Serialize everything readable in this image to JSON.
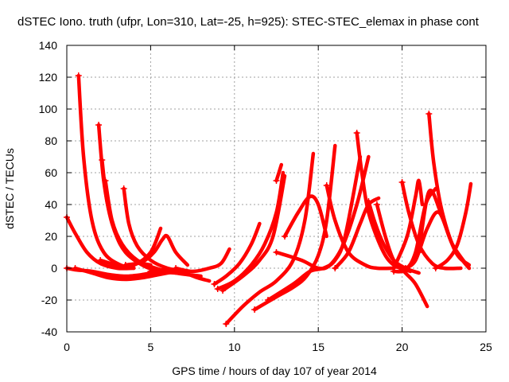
{
  "chart_data": {
    "type": "scatter",
    "title": "dSTEC Iono. truth (ufpr, Lon=310, Lat=-25, h=925): STEC-STEC_elemax in phase cont",
    "xlabel": "GPS time / hours of day 107 of year 2014",
    "ylabel": "dSTEC  / TECUs",
    "xlim": [
      0,
      25
    ],
    "ylim": [
      -40,
      140
    ],
    "x_ticks": [
      "0",
      "5",
      "10",
      "15",
      "20",
      "25"
    ],
    "y_ticks": [
      "-40",
      "-20",
      "0",
      "20",
      "40",
      "60",
      "80",
      "100",
      "120",
      "140"
    ],
    "grid": true,
    "marker": "plus",
    "color": "#ff0000",
    "series": [
      {
        "x": [
          0.7,
          1.0,
          1.5,
          2.2,
          3.2,
          4.0
        ],
        "y": [
          121,
          70,
          30,
          10,
          2,
          0
        ]
      },
      {
        "x": [
          0,
          0.5,
          1.5,
          2.5,
          3.5,
          4.5,
          5.5
        ],
        "y": [
          0,
          -1,
          -2,
          -4,
          -5,
          -4,
          -2
        ]
      },
      {
        "x": [
          0,
          0.5,
          1.2,
          2.0,
          3.0,
          4.0
        ],
        "y": [
          32,
          22,
          10,
          3,
          0,
          0
        ]
      },
      {
        "x": [
          1.9,
          2.2,
          2.7,
          3.4,
          4.3,
          5.0
        ],
        "y": [
          90,
          55,
          28,
          12,
          4,
          2
        ]
      },
      {
        "x": [
          2.1,
          2.4,
          2.9,
          3.5,
          4.5,
          5.5,
          6.5
        ],
        "y": [
          68,
          42,
          22,
          10,
          2,
          -2,
          -3
        ]
      },
      {
        "x": [
          2.3,
          2.7,
          3.3,
          4.2,
          5.3,
          6.5,
          8.0
        ],
        "y": [
          55,
          30,
          15,
          5,
          0,
          -3,
          -5
        ]
      },
      {
        "x": [
          0.5,
          1.5,
          2.5,
          3.5,
          4.5,
          5.5,
          6.5
        ],
        "y": [
          0,
          -3,
          -6,
          -7,
          -6,
          -4,
          -2
        ]
      },
      {
        "x": [
          3.4,
          3.7,
          4.2,
          5.0,
          6.0,
          7.0
        ],
        "y": [
          50,
          28,
          14,
          5,
          0,
          -2
        ]
      },
      {
        "x": [
          2.0,
          3.0,
          4.0,
          5.0,
          5.6
        ],
        "y": [
          5,
          2,
          2,
          10,
          25
        ]
      },
      {
        "x": [
          3.5,
          4.5,
          5.2,
          5.7,
          6.0,
          6.5,
          7.2
        ],
        "y": [
          2,
          4,
          10,
          18,
          20,
          10,
          2
        ]
      },
      {
        "x": [
          5.0,
          6.0,
          7.0,
          7.8,
          8.5
        ],
        "y": [
          -2,
          -1,
          -3,
          -6,
          -8
        ]
      },
      {
        "x": [
          6.5,
          7.5,
          8.5,
          9.2,
          9.7
        ],
        "y": [
          0,
          -2,
          0,
          3,
          12
        ]
      },
      {
        "x": [
          8.8,
          9.5,
          10.3,
          11.0,
          11.5
        ],
        "y": [
          -10,
          -5,
          3,
          15,
          28
        ]
      },
      {
        "x": [
          9.0,
          10.0,
          11.0,
          11.8,
          12.5,
          12.9
        ],
        "y": [
          -13,
          -8,
          2,
          15,
          35,
          60
        ]
      },
      {
        "x": [
          9.3,
          10.5,
          11.5,
          12.3,
          13.0
        ],
        "y": [
          -14,
          -5,
          5,
          20,
          58
        ]
      },
      {
        "x": [
          12.5,
          12.8
        ],
        "y": [
          55,
          65
        ]
      },
      {
        "x": [
          9.5,
          10.5,
          11.5,
          12.5,
          13.5,
          14.2,
          14.7
        ],
        "y": [
          -35,
          -24,
          -15,
          -8,
          5,
          30,
          72
        ]
      },
      {
        "x": [
          11.2,
          12.5,
          13.5,
          14.3,
          15.0,
          15.5,
          16.0
        ],
        "y": [
          -26,
          -18,
          -12,
          -5,
          8,
          30,
          77
        ]
      },
      {
        "x": [
          12.0,
          13.5,
          14.5,
          15.3,
          16.0,
          16.6,
          17.5
        ],
        "y": [
          -20,
          -10,
          -2,
          0,
          5,
          20,
          70
        ]
      },
      {
        "x": [
          13.0,
          13.8,
          14.5,
          15.0,
          15.5
        ],
        "y": [
          20,
          35,
          45,
          40,
          20
        ]
      },
      {
        "x": [
          12.5,
          14.0,
          15.0,
          15.7,
          16.5,
          17.3,
          18.0
        ],
        "y": [
          10,
          5,
          0,
          2,
          15,
          40,
          70
        ]
      },
      {
        "x": [
          15.5,
          16.0,
          16.8,
          17.8,
          18.5,
          19.5
        ],
        "y": [
          52,
          30,
          10,
          2,
          0,
          0
        ]
      },
      {
        "x": [
          16.0,
          16.8,
          17.5,
          18.0,
          18.6
        ],
        "y": [
          0,
          10,
          28,
          40,
          44
        ]
      },
      {
        "x": [
          17.3,
          17.6,
          18.0,
          18.8,
          19.5,
          20.5
        ],
        "y": [
          85,
          60,
          35,
          12,
          2,
          -2
        ]
      },
      {
        "x": [
          18.0,
          18.4,
          18.9,
          19.5,
          20.2,
          21.0
        ],
        "y": [
          42,
          28,
          15,
          5,
          0,
          -3
        ]
      },
      {
        "x": [
          18.5,
          19.0,
          19.5,
          20.2,
          20.8,
          21.5
        ],
        "y": [
          40,
          20,
          5,
          -3,
          -10,
          -24
        ]
      },
      {
        "x": [
          19.5,
          20.2,
          20.8,
          21.4,
          22.0
        ],
        "y": [
          -2,
          -1,
          10,
          40,
          50
        ]
      },
      {
        "x": [
          20.0,
          20.4,
          21.0,
          21.8,
          22.5,
          23.5
        ],
        "y": [
          54,
          35,
          15,
          3,
          0,
          0
        ]
      },
      {
        "x": [
          20.2,
          20.8,
          21.5,
          22.2,
          23.0,
          24.0
        ],
        "y": [
          0,
          5,
          25,
          35,
          15,
          0
        ]
      },
      {
        "x": [
          21.0,
          21.6,
          22.3,
          23.0,
          23.6,
          24.0
        ],
        "y": [
          10,
          48,
          35,
          15,
          5,
          0
        ]
      },
      {
        "x": [
          21.6,
          21.9,
          22.4,
          23.2,
          24.0
        ],
        "y": [
          97,
          65,
          35,
          10,
          2
        ]
      },
      {
        "x": [
          22.0,
          22.7,
          23.3,
          23.8,
          24.1
        ],
        "y": [
          0,
          5,
          15,
          35,
          53
        ]
      },
      {
        "x": [
          19.5,
          20.3,
          20.8,
          21.0,
          21.2
        ],
        "y": [
          0,
          20,
          45,
          55,
          40
        ]
      }
    ]
  }
}
